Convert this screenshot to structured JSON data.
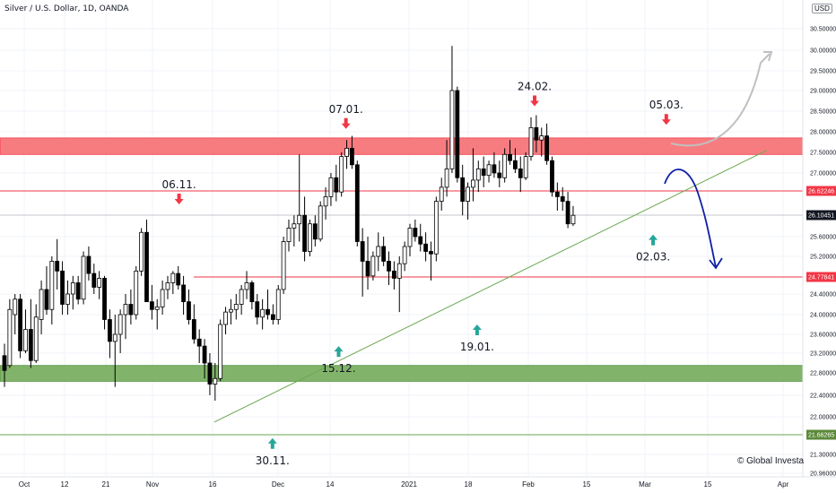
{
  "header": {
    "title": "Silver / U.S. Dollar, 1D, OANDA",
    "currency": "USD",
    "copyright": "© Global Investa"
  },
  "colors": {
    "bull": "#ffffff",
    "bear": "#000000",
    "red": "#f23645",
    "green": "#26a69a",
    "trend": "#6aa84f",
    "resistance_zone": "#f77c80",
    "support_zone": "#81b46a",
    "forecast_up": "#c0c0c0",
    "forecast_down": "#0d1fa6",
    "grid": "#f0f3fa"
  },
  "chart_data": {
    "type": "candlestick",
    "title": "Silver / U.S. Dollar, 1D, OANDA",
    "xlabel": "",
    "ylabel": "USD",
    "ylim": [
      20.9,
      31.0
    ],
    "y_ticks": [
      30.5,
      30.0,
      29.5,
      29.0,
      28.5,
      28.0,
      27.5,
      27.0,
      25.6,
      25.2,
      24.4,
      24.0,
      23.6,
      23.2,
      22.8,
      22.4,
      22.0,
      21.3,
      20.96
    ],
    "x_ticks": [
      "Oct",
      "12",
      "21",
      "Nov",
      "16",
      "Dec",
      "14",
      "2021",
      "18",
      "Feb",
      "15",
      "Mar",
      "15",
      "Apr"
    ],
    "candles": [
      {
        "o": 23.15,
        "h": 23.4,
        "l": 22.55,
        "c": 22.85
      },
      {
        "o": 22.95,
        "h": 24.3,
        "l": 22.9,
        "c": 24.1
      },
      {
        "o": 24.0,
        "h": 24.4,
        "l": 23.6,
        "c": 24.3
      },
      {
        "o": 24.3,
        "h": 24.4,
        "l": 23.1,
        "c": 23.25
      },
      {
        "o": 23.25,
        "h": 24.1,
        "l": 23.2,
        "c": 23.7
      },
      {
        "o": 23.7,
        "h": 24.3,
        "l": 22.9,
        "c": 23.05
      },
      {
        "o": 23.05,
        "h": 24.2,
        "l": 23.0,
        "c": 23.95
      },
      {
        "o": 23.9,
        "h": 24.7,
        "l": 23.6,
        "c": 24.5
      },
      {
        "o": 24.5,
        "h": 25.0,
        "l": 24.0,
        "c": 24.1
      },
      {
        "o": 24.1,
        "h": 25.2,
        "l": 23.8,
        "c": 25.1
      },
      {
        "o": 25.1,
        "h": 25.55,
        "l": 24.5,
        "c": 24.9
      },
      {
        "o": 24.9,
        "h": 25.1,
        "l": 24.0,
        "c": 24.2
      },
      {
        "o": 24.2,
        "h": 24.7,
        "l": 24.0,
        "c": 24.4
      },
      {
        "o": 24.4,
        "h": 24.8,
        "l": 24.1,
        "c": 24.65
      },
      {
        "o": 24.65,
        "h": 24.8,
        "l": 24.2,
        "c": 24.3
      },
      {
        "o": 24.3,
        "h": 25.3,
        "l": 24.2,
        "c": 25.2
      },
      {
        "o": 25.2,
        "h": 25.4,
        "l": 24.7,
        "c": 24.85
      },
      {
        "o": 24.85,
        "h": 25.05,
        "l": 24.4,
        "c": 24.55
      },
      {
        "o": 24.55,
        "h": 24.9,
        "l": 24.3,
        "c": 24.75
      },
      {
        "o": 24.75,
        "h": 24.8,
        "l": 23.7,
        "c": 23.9
      },
      {
        "o": 23.9,
        "h": 24.1,
        "l": 23.1,
        "c": 23.45
      },
      {
        "o": 23.45,
        "h": 24.0,
        "l": 22.55,
        "c": 23.6
      },
      {
        "o": 23.6,
        "h": 24.1,
        "l": 23.2,
        "c": 24.0
      },
      {
        "o": 24.0,
        "h": 24.4,
        "l": 23.5,
        "c": 24.2
      },
      {
        "o": 24.2,
        "h": 24.5,
        "l": 23.8,
        "c": 24.0
      },
      {
        "o": 24.0,
        "h": 25.0,
        "l": 23.9,
        "c": 24.9
      },
      {
        "o": 24.9,
        "h": 25.8,
        "l": 24.8,
        "c": 25.7
      },
      {
        "o": 25.7,
        "h": 26.0,
        "l": 24.3,
        "c": 24.25
      },
      {
        "o": 24.25,
        "h": 24.6,
        "l": 23.9,
        "c": 24.1
      },
      {
        "o": 24.1,
        "h": 24.3,
        "l": 23.7,
        "c": 24.15
      },
      {
        "o": 24.15,
        "h": 24.7,
        "l": 24.0,
        "c": 24.5
      },
      {
        "o": 24.5,
        "h": 24.8,
        "l": 24.3,
        "c": 24.65
      },
      {
        "o": 24.65,
        "h": 24.9,
        "l": 24.4,
        "c": 24.85
      },
      {
        "o": 24.85,
        "h": 25.0,
        "l": 24.5,
        "c": 24.6
      },
      {
        "o": 24.6,
        "h": 24.8,
        "l": 24.0,
        "c": 24.25
      },
      {
        "o": 24.25,
        "h": 24.5,
        "l": 23.8,
        "c": 23.9
      },
      {
        "o": 23.9,
        "h": 24.2,
        "l": 23.4,
        "c": 23.5
      },
      {
        "o": 23.5,
        "h": 23.7,
        "l": 23.0,
        "c": 23.35
      },
      {
        "o": 23.35,
        "h": 23.5,
        "l": 22.7,
        "c": 23.0
      },
      {
        "o": 23.0,
        "h": 23.2,
        "l": 22.4,
        "c": 22.6
      },
      {
        "o": 22.6,
        "h": 23.0,
        "l": 22.3,
        "c": 22.7
      },
      {
        "o": 22.7,
        "h": 23.9,
        "l": 22.65,
        "c": 23.8
      },
      {
        "o": 23.8,
        "h": 24.15,
        "l": 23.6,
        "c": 24.05
      },
      {
        "o": 24.05,
        "h": 24.3,
        "l": 23.8,
        "c": 24.1
      },
      {
        "o": 24.1,
        "h": 24.4,
        "l": 23.9,
        "c": 24.2
      },
      {
        "o": 24.2,
        "h": 24.6,
        "l": 24.0,
        "c": 24.5
      },
      {
        "o": 24.5,
        "h": 24.9,
        "l": 24.3,
        "c": 24.65
      },
      {
        "o": 24.65,
        "h": 24.7,
        "l": 24.1,
        "c": 24.25
      },
      {
        "o": 24.25,
        "h": 24.4,
        "l": 23.8,
        "c": 23.95
      },
      {
        "o": 23.95,
        "h": 24.3,
        "l": 23.7,
        "c": 24.1
      },
      {
        "o": 24.1,
        "h": 24.5,
        "l": 23.9,
        "c": 24.0
      },
      {
        "o": 24.0,
        "h": 24.2,
        "l": 23.8,
        "c": 23.9
      },
      {
        "o": 23.9,
        "h": 24.6,
        "l": 23.8,
        "c": 24.5
      },
      {
        "o": 24.5,
        "h": 25.6,
        "l": 24.4,
        "c": 25.5
      },
      {
        "o": 25.5,
        "h": 26.0,
        "l": 25.3,
        "c": 25.8
      },
      {
        "o": 25.8,
        "h": 26.1,
        "l": 25.4,
        "c": 25.9
      },
      {
        "o": 25.9,
        "h": 27.45,
        "l": 25.5,
        "c": 26.1
      },
      {
        "o": 26.1,
        "h": 26.5,
        "l": 25.1,
        "c": 25.3
      },
      {
        "o": 25.3,
        "h": 26.0,
        "l": 25.2,
        "c": 25.9
      },
      {
        "o": 25.9,
        "h": 26.1,
        "l": 25.4,
        "c": 25.55
      },
      {
        "o": 25.55,
        "h": 26.4,
        "l": 25.5,
        "c": 26.3
      },
      {
        "o": 26.3,
        "h": 26.7,
        "l": 26.0,
        "c": 26.5
      },
      {
        "o": 26.5,
        "h": 27.0,
        "l": 26.3,
        "c": 26.9
      },
      {
        "o": 26.9,
        "h": 27.2,
        "l": 26.4,
        "c": 26.6
      },
      {
        "o": 26.6,
        "h": 27.5,
        "l": 26.5,
        "c": 27.4
      },
      {
        "o": 27.4,
        "h": 27.8,
        "l": 27.1,
        "c": 27.6
      },
      {
        "o": 27.6,
        "h": 27.9,
        "l": 27.1,
        "c": 27.2
      },
      {
        "o": 27.2,
        "h": 27.3,
        "l": 25.4,
        "c": 25.5
      },
      {
        "o": 25.5,
        "h": 25.8,
        "l": 24.35,
        "c": 25.1
      },
      {
        "o": 25.1,
        "h": 25.6,
        "l": 24.5,
        "c": 24.8
      },
      {
        "o": 24.8,
        "h": 25.3,
        "l": 24.7,
        "c": 25.2
      },
      {
        "o": 25.2,
        "h": 25.7,
        "l": 24.9,
        "c": 25.4
      },
      {
        "o": 25.4,
        "h": 25.6,
        "l": 25.0,
        "c": 25.1
      },
      {
        "o": 25.1,
        "h": 25.3,
        "l": 24.6,
        "c": 24.9
      },
      {
        "o": 24.9,
        "h": 25.1,
        "l": 24.5,
        "c": 24.75
      },
      {
        "o": 24.75,
        "h": 25.2,
        "l": 24.05,
        "c": 25.05
      },
      {
        "o": 25.05,
        "h": 25.5,
        "l": 24.9,
        "c": 25.4
      },
      {
        "o": 25.4,
        "h": 25.9,
        "l": 25.2,
        "c": 25.8
      },
      {
        "o": 25.8,
        "h": 26.0,
        "l": 25.5,
        "c": 25.6
      },
      {
        "o": 25.6,
        "h": 25.9,
        "l": 25.3,
        "c": 25.45
      },
      {
        "o": 25.45,
        "h": 25.7,
        "l": 25.1,
        "c": 25.3
      },
      {
        "o": 25.3,
        "h": 25.5,
        "l": 24.7,
        "c": 25.25
      },
      {
        "o": 25.25,
        "h": 26.5,
        "l": 25.1,
        "c": 26.4
      },
      {
        "o": 26.4,
        "h": 26.9,
        "l": 26.2,
        "c": 26.7
      },
      {
        "o": 26.7,
        "h": 27.8,
        "l": 26.5,
        "c": 27.1
      },
      {
        "o": 27.1,
        "h": 30.1,
        "l": 27.0,
        "c": 29.0
      },
      {
        "o": 29.0,
        "h": 29.1,
        "l": 26.8,
        "c": 26.9
      },
      {
        "o": 26.9,
        "h": 27.2,
        "l": 26.1,
        "c": 26.4
      },
      {
        "o": 26.4,
        "h": 26.8,
        "l": 26.0,
        "c": 26.7
      },
      {
        "o": 26.7,
        "h": 27.6,
        "l": 26.4,
        "c": 26.85
      },
      {
        "o": 26.85,
        "h": 27.3,
        "l": 26.6,
        "c": 27.1
      },
      {
        "o": 27.1,
        "h": 27.4,
        "l": 26.7,
        "c": 26.95
      },
      {
        "o": 26.95,
        "h": 27.3,
        "l": 26.8,
        "c": 27.2
      },
      {
        "o": 27.2,
        "h": 27.5,
        "l": 26.9,
        "c": 27.0
      },
      {
        "o": 27.0,
        "h": 27.3,
        "l": 26.7,
        "c": 26.9
      },
      {
        "o": 26.9,
        "h": 27.6,
        "l": 26.8,
        "c": 27.45
      },
      {
        "o": 27.45,
        "h": 27.8,
        "l": 27.2,
        "c": 27.3
      },
      {
        "o": 27.3,
        "h": 27.6,
        "l": 27.0,
        "c": 27.1
      },
      {
        "o": 27.1,
        "h": 27.4,
        "l": 26.6,
        "c": 26.9
      },
      {
        "o": 26.9,
        "h": 27.5,
        "l": 26.85,
        "c": 27.4
      },
      {
        "o": 27.4,
        "h": 28.35,
        "l": 27.3,
        "c": 28.1
      },
      {
        "o": 28.1,
        "h": 28.4,
        "l": 27.5,
        "c": 27.8
      },
      {
        "o": 27.8,
        "h": 28.1,
        "l": 27.4,
        "c": 27.9
      },
      {
        "o": 27.9,
        "h": 28.2,
        "l": 27.2,
        "c": 27.3
      },
      {
        "o": 27.3,
        "h": 27.4,
        "l": 26.5,
        "c": 26.6
      },
      {
        "o": 26.6,
        "h": 26.8,
        "l": 26.2,
        "c": 26.5
      },
      {
        "o": 26.5,
        "h": 26.7,
        "l": 26.2,
        "c": 26.4
      },
      {
        "o": 26.4,
        "h": 26.6,
        "l": 25.8,
        "c": 25.9
      },
      {
        "o": 25.9,
        "h": 26.3,
        "l": 25.85,
        "c": 26.1
      }
    ],
    "horizontal_levels": [
      {
        "value": 26.62246,
        "label": "26.62246"
      },
      {
        "value": 24.77841,
        "label": "24.77841"
      },
      {
        "value": 21.66265,
        "label": "21.66265"
      }
    ],
    "current_price": {
      "value": 26.10451,
      "label": "26.10451"
    },
    "zones": [
      {
        "kind": "resistance",
        "from": 27.45,
        "to": 27.85
      },
      {
        "kind": "support",
        "from": 22.65,
        "to": 22.95
      }
    ],
    "trendline": {
      "from_index": 40,
      "from_price": 21.9,
      "to_index": 140,
      "to_price": 27.55
    },
    "annotations": [
      {
        "text": "06.11.",
        "index": 26,
        "direction": "down",
        "price": 26.45
      },
      {
        "text": "07.01.",
        "index": 64,
        "direction": "down",
        "price": 28.2
      },
      {
        "text": "24.02.",
        "index": 100,
        "direction": "down",
        "price": 28.75
      },
      {
        "text": "05.03.",
        "index": 109,
        "direction": "down",
        "price": 28.3
      },
      {
        "text": "30.11.",
        "index": 40,
        "direction": "up",
        "price": 21.6
      },
      {
        "text": "15.12.",
        "index": 50,
        "direction": "up",
        "price": 23.35
      },
      {
        "text": "19.01.",
        "index": 70,
        "direction": "up",
        "price": 23.8
      },
      {
        "text": "02.03.",
        "index": 107,
        "direction": "up",
        "price": 25.65
      }
    ],
    "grid": true
  }
}
